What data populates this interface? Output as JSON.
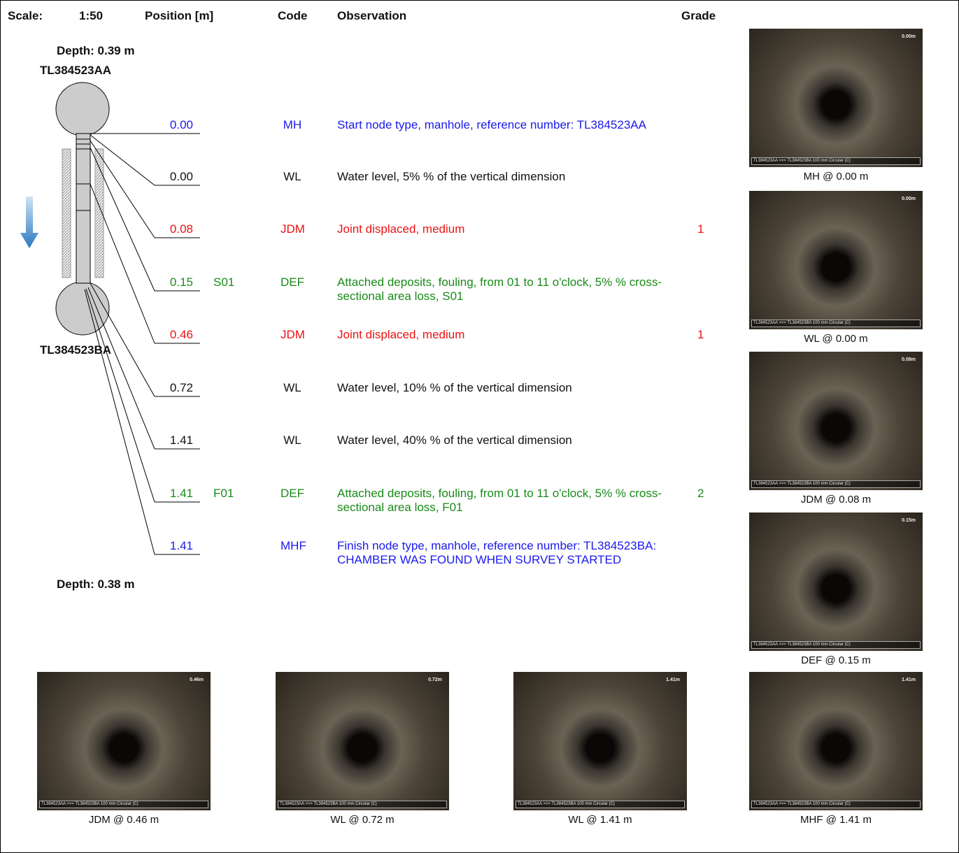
{
  "header": {
    "scale_label": "Scale:",
    "scale": "1:50",
    "position_label": "Position [m]",
    "code_label": "Code",
    "observation_label": "Observation",
    "grade_label": "Grade"
  },
  "diagram": {
    "start_depth": "Depth: 0.39 m",
    "start_node": "TL384523AA",
    "finish_node": "TL384523BA",
    "finish_depth": "Depth: 0.38 m"
  },
  "rows": [
    {
      "position": "0.00",
      "code": "MH",
      "observation": "Start node type, manhole, reference number: TL384523AA",
      "color": "#1a1aee"
    },
    {
      "position": "0.00",
      "code": "WL",
      "observation": "Water level, 5% % of the vertical dimension",
      "color": "#111111"
    },
    {
      "position": "0.08",
      "code": "JDM",
      "observation": "Joint displaced, medium",
      "grade": "1",
      "color": "#ee1111"
    },
    {
      "position": "0.15",
      "remark": "S01",
      "code": "DEF",
      "observation": "Attached deposits, fouling, from 01 to 11 o'clock, 5% % cross-sectional area loss, S01",
      "color": "#1a8a1a"
    },
    {
      "position": "0.46",
      "code": "JDM",
      "observation": "Joint displaced, medium",
      "grade": "1",
      "color": "#ee1111"
    },
    {
      "position": "0.72",
      "code": "WL",
      "observation": "Water level, 10% % of the vertical dimension",
      "color": "#111111"
    },
    {
      "position": "1.41",
      "code": "WL",
      "observation": "Water level, 40% % of the vertical dimension",
      "color": "#111111"
    },
    {
      "position": "1.41",
      "remark": "F01",
      "code": "DEF",
      "observation": "Attached deposits, fouling, from 01 to 11 o'clock, 5% % cross-sectional area loss, F01",
      "grade": "2",
      "color": "#1a8a1a"
    },
    {
      "position": "1.41",
      "code": "MHF",
      "observation": "Finish node type, manhole, reference number: TL384523BA: CHAMBER WAS FOUND WHEN SURVEY STARTED",
      "color": "#1a1aee"
    }
  ],
  "photos": [
    {
      "caption": "MH @ 0.00 m",
      "overlay": "0.00m"
    },
    {
      "caption": "WL @ 0.00 m",
      "overlay": "0.00m"
    },
    {
      "caption": "JDM @ 0.08 m",
      "overlay": "0.08m"
    },
    {
      "caption": "DEF @ 0.15 m",
      "overlay": "0.15m"
    },
    {
      "caption": "JDM @ 0.46 m",
      "overlay": "0.46m"
    },
    {
      "caption": "WL @ 0.72 m",
      "overlay": "0.72m"
    },
    {
      "caption": "WL @ 1.41 m",
      "overlay": "1.41m"
    },
    {
      "caption": "MHF @ 1.41 m",
      "overlay": "1.41m"
    }
  ],
  "photo_footer": "TL384523AA >>> TL384523BA 100 mm Circular (C)"
}
